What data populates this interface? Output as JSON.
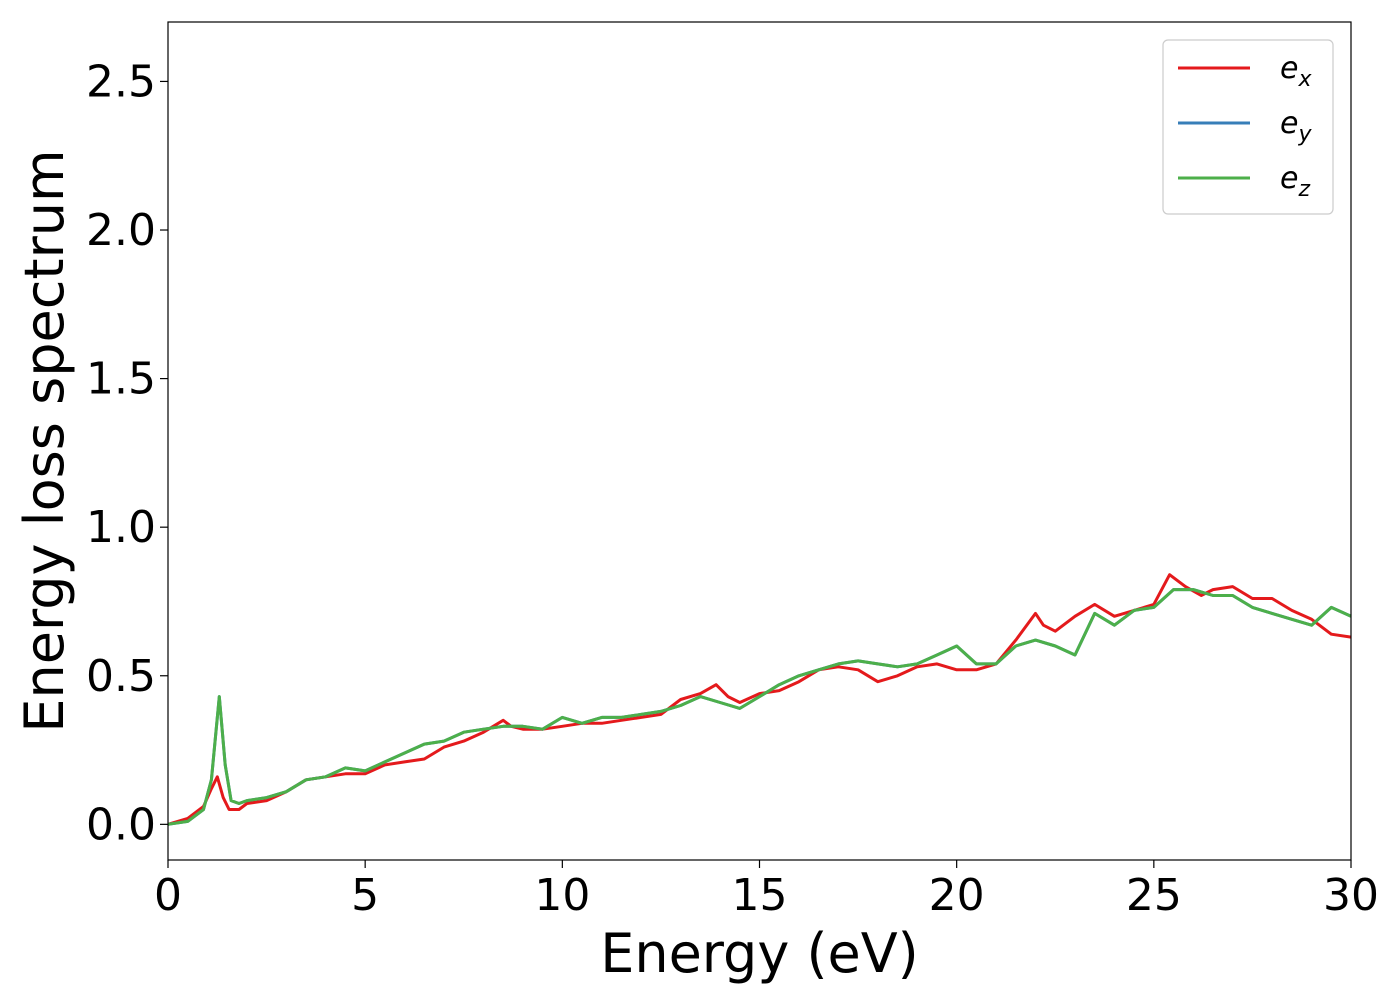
{
  "chart_data": {
    "type": "line",
    "title": "",
    "xlabel": "Energy (eV)",
    "ylabel": "Energy loss spectrum",
    "xlim": [
      0,
      30
    ],
    "ylim": [
      -0.12,
      2.7
    ],
    "xticks": [
      0,
      5,
      10,
      15,
      20,
      25,
      30
    ],
    "xtick_labels": [
      "0",
      "5",
      "10",
      "15",
      "20",
      "25",
      "30"
    ],
    "yticks": [
      0.0,
      0.5,
      1.0,
      1.5,
      2.0,
      2.5
    ],
    "ytick_labels": [
      "0.0",
      "0.5",
      "1.0",
      "1.5",
      "2.0",
      "2.5"
    ],
    "grid": false,
    "legend_position": "top-right",
    "series": [
      {
        "name": "e",
        "subscript": "x",
        "color": "#e41a1c",
        "x": [
          0,
          0.5,
          0.9,
          1.1,
          1.25,
          1.4,
          1.55,
          1.8,
          2.0,
          2.5,
          3.0,
          3.5,
          4.0,
          4.5,
          5.0,
          5.5,
          6.0,
          6.5,
          7.0,
          7.5,
          8.0,
          8.5,
          8.7,
          9.0,
          9.5,
          10.0,
          10.5,
          11.0,
          11.5,
          12.0,
          12.5,
          13.0,
          13.5,
          13.9,
          14.2,
          14.5,
          15.0,
          15.5,
          16.0,
          16.5,
          17.0,
          17.5,
          18.0,
          18.5,
          19.0,
          19.5,
          20.0,
          20.5,
          21.0,
          21.5,
          22.0,
          22.2,
          22.5,
          23.0,
          23.5,
          24.0,
          24.5,
          25.0,
          25.4,
          25.8,
          26.2,
          26.5,
          27.0,
          27.5,
          28.0,
          28.5,
          29.0,
          29.5,
          30.0
        ],
        "y": [
          0.0,
          0.02,
          0.06,
          0.12,
          0.16,
          0.09,
          0.05,
          0.05,
          0.07,
          0.08,
          0.11,
          0.15,
          0.16,
          0.17,
          0.17,
          0.2,
          0.21,
          0.22,
          0.26,
          0.28,
          0.31,
          0.35,
          0.33,
          0.32,
          0.32,
          0.33,
          0.34,
          0.34,
          0.35,
          0.36,
          0.37,
          0.42,
          0.44,
          0.47,
          0.43,
          0.41,
          0.44,
          0.45,
          0.48,
          0.52,
          0.53,
          0.52,
          0.48,
          0.5,
          0.53,
          0.54,
          0.52,
          0.52,
          0.54,
          0.62,
          0.71,
          0.67,
          0.65,
          0.7,
          0.74,
          0.7,
          0.72,
          0.74,
          0.84,
          0.8,
          0.77,
          0.79,
          0.8,
          0.76,
          0.76,
          0.72,
          0.69,
          0.64,
          0.63
        ]
      },
      {
        "name": "e",
        "subscript": "y",
        "color": "#377eb8",
        "x": [
          0,
          0.5,
          0.9,
          1.1,
          1.3,
          1.45,
          1.6,
          1.8,
          2.0,
          2.5,
          3.0,
          3.5,
          4.0,
          4.5,
          5.0,
          5.5,
          6.0,
          6.5,
          7.0,
          7.5,
          8.0,
          8.5,
          9.0,
          9.5,
          10.0,
          10.5,
          11.0,
          11.5,
          12.0,
          12.5,
          13.0,
          13.5,
          14.0,
          14.5,
          15.0,
          15.5,
          16.0,
          16.5,
          17.0,
          17.5,
          18.0,
          18.5,
          19.0,
          19.5,
          20.0,
          20.5,
          21.0,
          21.5,
          22.0,
          22.5,
          23.0,
          23.5,
          24.0,
          24.5,
          25.0,
          25.5,
          26.0,
          26.5,
          27.0,
          27.5,
          28.0,
          28.5,
          29.0,
          29.5,
          30.0
        ],
        "y": [
          0.0,
          0.01,
          0.05,
          0.15,
          0.43,
          0.2,
          0.08,
          0.07,
          0.08,
          0.09,
          0.11,
          0.15,
          0.16,
          0.19,
          0.18,
          0.21,
          0.24,
          0.27,
          0.28,
          0.31,
          0.32,
          0.33,
          0.33,
          0.32,
          0.36,
          0.34,
          0.36,
          0.36,
          0.37,
          0.38,
          0.4,
          0.43,
          0.41,
          0.39,
          0.43,
          0.47,
          0.5,
          0.52,
          0.54,
          0.55,
          0.54,
          0.53,
          0.54,
          0.57,
          0.6,
          0.54,
          0.54,
          0.6,
          0.62,
          0.6,
          0.57,
          0.71,
          0.67,
          0.72,
          0.73,
          0.79,
          0.79,
          0.77,
          0.77,
          0.73,
          0.71,
          0.69,
          0.67,
          0.73,
          0.7
        ]
      },
      {
        "name": "e",
        "subscript": "z",
        "color": "#4daf4a",
        "x": [
          0,
          0.5,
          0.9,
          1.1,
          1.3,
          1.45,
          1.6,
          1.8,
          2.0,
          2.5,
          3.0,
          3.5,
          4.0,
          4.5,
          5.0,
          5.5,
          6.0,
          6.5,
          7.0,
          7.5,
          8.0,
          8.5,
          9.0,
          9.5,
          10.0,
          10.5,
          11.0,
          11.5,
          12.0,
          12.5,
          13.0,
          13.5,
          14.0,
          14.5,
          15.0,
          15.5,
          16.0,
          16.5,
          17.0,
          17.5,
          18.0,
          18.5,
          19.0,
          19.5,
          20.0,
          20.5,
          21.0,
          21.5,
          22.0,
          22.5,
          23.0,
          23.5,
          24.0,
          24.5,
          25.0,
          25.5,
          26.0,
          26.5,
          27.0,
          27.5,
          28.0,
          28.5,
          29.0,
          29.5,
          30.0
        ],
        "y": [
          0.0,
          0.01,
          0.05,
          0.15,
          0.43,
          0.2,
          0.08,
          0.07,
          0.08,
          0.09,
          0.11,
          0.15,
          0.16,
          0.19,
          0.18,
          0.21,
          0.24,
          0.27,
          0.28,
          0.31,
          0.32,
          0.33,
          0.33,
          0.32,
          0.36,
          0.34,
          0.36,
          0.36,
          0.37,
          0.38,
          0.4,
          0.43,
          0.41,
          0.39,
          0.43,
          0.47,
          0.5,
          0.52,
          0.54,
          0.55,
          0.54,
          0.53,
          0.54,
          0.57,
          0.6,
          0.54,
          0.54,
          0.6,
          0.62,
          0.6,
          0.57,
          0.71,
          0.67,
          0.72,
          0.73,
          0.79,
          0.79,
          0.77,
          0.77,
          0.73,
          0.71,
          0.69,
          0.67,
          0.73,
          0.7
        ]
      }
    ]
  }
}
